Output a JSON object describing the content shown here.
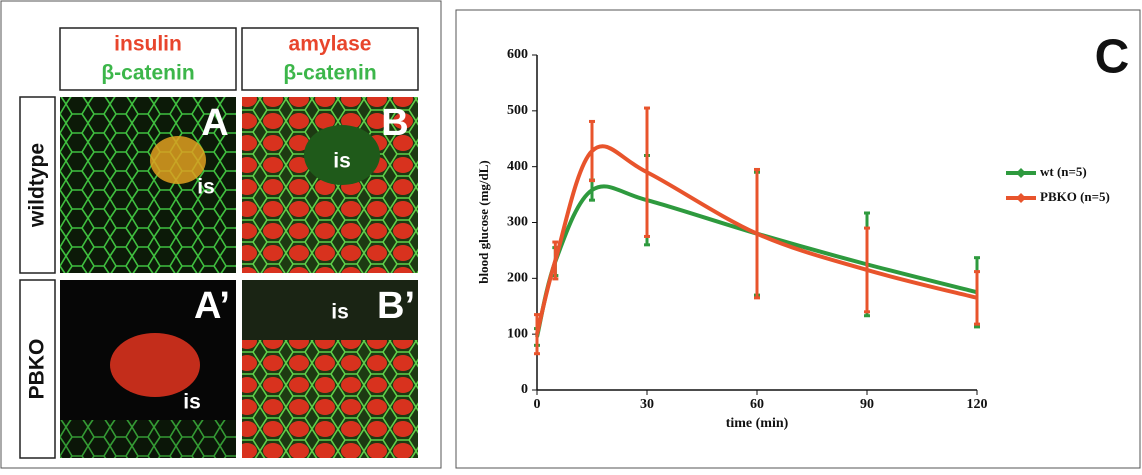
{
  "image_panels": {
    "columns": [
      {
        "line1": "insulin",
        "line2": "β-catenin"
      },
      {
        "line1": "amylase",
        "line2": "β-catenin"
      }
    ],
    "rows": [
      "wildtype",
      "PBKO"
    ],
    "cells": [
      {
        "letter": "A",
        "label": "is"
      },
      {
        "letter": "B",
        "label": "is"
      },
      {
        "letter": "A’",
        "label": "is"
      },
      {
        "letter": "B’",
        "label": "is"
      }
    ]
  },
  "chart_data": {
    "type": "line",
    "annotation": "C",
    "x_label": "time (min)",
    "y_label": "blood glucose (mg/dL)",
    "x": [
      0,
      5,
      15,
      30,
      60,
      90,
      120
    ],
    "series": [
      {
        "name": "wt (n=5)",
        "color": "#2e9a3e",
        "values": [
          95,
          230,
          358,
          340,
          280,
          225,
          175
        ],
        "errors": [
          15,
          25,
          18,
          80,
          110,
          92,
          62
        ]
      },
      {
        "name": "PBKO (n=5)",
        "color": "#e8542c",
        "values": [
          100,
          232,
          428,
          390,
          280,
          215,
          165
        ],
        "errors": [
          35,
          33,
          53,
          115,
          115,
          75,
          47
        ]
      }
    ],
    "xlim": [
      0,
      120
    ],
    "ylim": [
      0,
      600
    ],
    "xticks": [
      0,
      30,
      60,
      90,
      120
    ],
    "yticks": [
      0,
      100,
      200,
      300,
      400,
      500,
      600
    ],
    "grid": false,
    "legend": "right"
  }
}
